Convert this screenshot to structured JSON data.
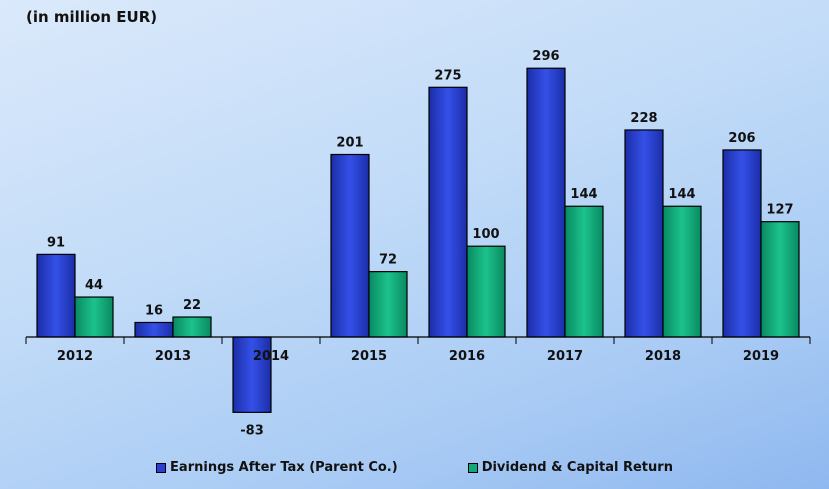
{
  "chart_data": {
    "type": "bar",
    "title": "(in million EUR)",
    "categories": [
      "2012",
      "2013",
      "2014",
      "2015",
      "2016",
      "2017",
      "2018",
      "2019"
    ],
    "series": [
      {
        "name": "Earnings After Tax (Parent Co.)",
        "color": "#2b3fd1",
        "values": [
          91,
          16,
          -83,
          201,
          275,
          296,
          228,
          206
        ]
      },
      {
        "name": "Dividend & Capital Return",
        "color": "#12a878",
        "values": [
          44,
          22,
          null,
          72,
          100,
          144,
          144,
          127
        ]
      }
    ],
    "xlabel": "",
    "ylabel": "",
    "ylim": [
      -83,
      296
    ],
    "grid": false,
    "legend_position": "bottom"
  }
}
